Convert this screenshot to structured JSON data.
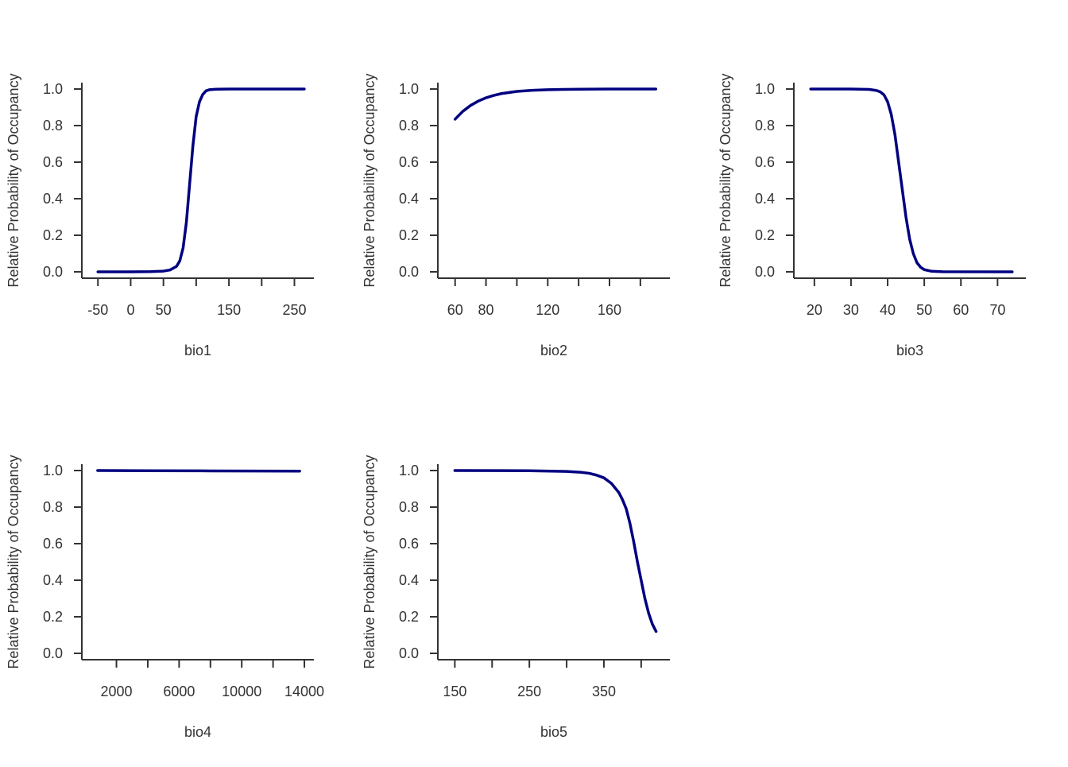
{
  "chart_data": [
    {
      "type": "line",
      "xlabel": "bio1",
      "ylabel": "Relative Probability of Occupancy",
      "xlim": [
        -60,
        270
      ],
      "ylim": [
        0,
        1
      ],
      "xticks": [
        -50,
        0,
        50,
        100,
        150,
        200,
        250
      ],
      "xtick_labels": [
        "-50",
        "0",
        "50",
        "",
        "150",
        "",
        "250"
      ],
      "yticks": [
        0.0,
        0.2,
        0.4,
        0.6,
        0.8,
        1.0
      ],
      "ytick_labels": [
        "0.0",
        "0.2",
        "0.4",
        "0.6",
        "0.8",
        "1.0"
      ],
      "color": "#000080",
      "x": [
        -50,
        0,
        30,
        50,
        60,
        70,
        75,
        80,
        85,
        90,
        95,
        100,
        105,
        110,
        115,
        120,
        130,
        150,
        200,
        265
      ],
      "y": [
        0.0,
        0.0,
        0.001,
        0.004,
        0.01,
        0.03,
        0.06,
        0.13,
        0.27,
        0.48,
        0.69,
        0.85,
        0.93,
        0.97,
        0.99,
        0.996,
        0.999,
        1.0,
        1.0,
        1.0
      ]
    },
    {
      "type": "line",
      "xlabel": "bio2",
      "ylabel": "Relative Probability of Occupancy",
      "xlim": [
        55,
        195
      ],
      "ylim": [
        0,
        1
      ],
      "xticks": [
        60,
        80,
        100,
        120,
        140,
        160,
        180
      ],
      "xtick_labels": [
        "60",
        "80",
        "",
        "120",
        "",
        "160",
        ""
      ],
      "yticks": [
        0.0,
        0.2,
        0.4,
        0.6,
        0.8,
        1.0
      ],
      "ytick_labels": [
        "0.0",
        "0.2",
        "0.4",
        "0.6",
        "0.8",
        "1.0"
      ],
      "color": "#000080",
      "x": [
        60,
        65,
        70,
        75,
        80,
        85,
        90,
        100,
        110,
        120,
        130,
        140,
        160,
        190
      ],
      "y": [
        0.835,
        0.878,
        0.91,
        0.934,
        0.952,
        0.965,
        0.975,
        0.987,
        0.993,
        0.996,
        0.998,
        0.999,
        1.0,
        1.0
      ]
    },
    {
      "type": "line",
      "xlabel": "bio3",
      "ylabel": "Relative Probability of Occupancy",
      "xlim": [
        17,
        76
      ],
      "ylim": [
        0,
        1
      ],
      "xticks": [
        20,
        30,
        40,
        50,
        60,
        70
      ],
      "xtick_labels": [
        "20",
        "30",
        "40",
        "50",
        "60",
        "70"
      ],
      "yticks": [
        0.0,
        0.2,
        0.4,
        0.6,
        0.8,
        1.0
      ],
      "ytick_labels": [
        "0.0",
        "0.2",
        "0.4",
        "0.6",
        "0.8",
        "1.0"
      ],
      "color": "#000080",
      "x": [
        19,
        30,
        35,
        37,
        38,
        39,
        40,
        41,
        42,
        43,
        44,
        45,
        46,
        47,
        48,
        49,
        50,
        52,
        55,
        74
      ],
      "y": [
        1.0,
        1.0,
        0.998,
        0.992,
        0.984,
        0.968,
        0.93,
        0.86,
        0.75,
        0.6,
        0.45,
        0.3,
        0.18,
        0.1,
        0.05,
        0.025,
        0.012,
        0.003,
        0.0005,
        0.0
      ]
    },
    {
      "type": "line",
      "xlabel": "bio4",
      "ylabel": "Relative Probability of Occupancy",
      "xlim": [
        400,
        14200
      ],
      "ylim": [
        0,
        1
      ],
      "xticks": [
        2000,
        4000,
        6000,
        8000,
        10000,
        12000,
        14000
      ],
      "xtick_labels": [
        "2000",
        "",
        "6000",
        "",
        "10000",
        "",
        "14000"
      ],
      "yticks": [
        0.0,
        0.2,
        0.4,
        0.6,
        0.8,
        1.0
      ],
      "ytick_labels": [
        "0.0",
        "0.2",
        "0.4",
        "0.6",
        "0.8",
        "1.0"
      ],
      "color": "#000080",
      "x": [
        800,
        4000,
        8000,
        13700
      ],
      "y": [
        1.0,
        0.999,
        0.998,
        0.997
      ]
    },
    {
      "type": "line",
      "xlabel": "bio5",
      "ylabel": "Relative Probability of Occupancy",
      "xlim": [
        140,
        430
      ],
      "ylim": [
        0,
        1
      ],
      "xticks": [
        150,
        200,
        250,
        300,
        350,
        400
      ],
      "xtick_labels": [
        "150",
        "",
        "250",
        "",
        "350",
        ""
      ],
      "yticks": [
        0.0,
        0.2,
        0.4,
        0.6,
        0.8,
        1.0
      ],
      "ytick_labels": [
        "0.0",
        "0.2",
        "0.4",
        "0.6",
        "0.8",
        "1.0"
      ],
      "color": "#000080",
      "x": [
        150,
        250,
        300,
        320,
        330,
        340,
        350,
        360,
        370,
        375,
        380,
        385,
        390,
        395,
        400,
        405,
        410,
        415,
        420
      ],
      "y": [
        1.0,
        0.999,
        0.995,
        0.99,
        0.985,
        0.975,
        0.96,
        0.93,
        0.88,
        0.84,
        0.79,
        0.71,
        0.61,
        0.5,
        0.4,
        0.3,
        0.22,
        0.16,
        0.12
      ]
    }
  ]
}
